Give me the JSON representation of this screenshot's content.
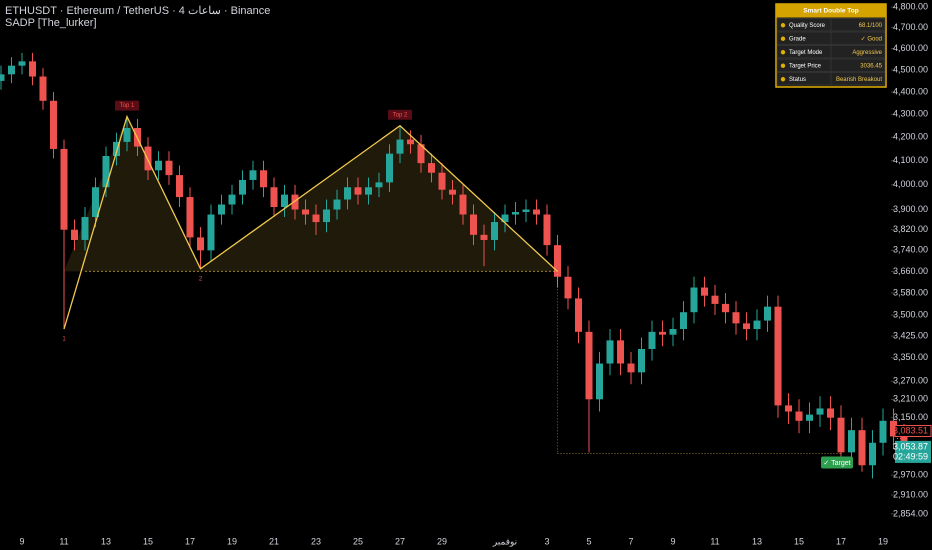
{
  "header": {
    "symbol": "ETHUSDT · Ethereum / TetherUS · 4 ساعات · Binance",
    "indicator": "SADP [The_lurker]"
  },
  "chart_data": {
    "type": "candlestick",
    "log_scale": true,
    "up_color": "#26a69a",
    "down_color": "#ef5350",
    "categories": [
      null,
      null,
      "9",
      null,
      null,
      null,
      "11",
      null,
      null,
      null,
      "13",
      null,
      null,
      null,
      "15",
      null,
      null,
      null,
      "17",
      null,
      null,
      null,
      "19",
      null,
      null,
      null,
      "21",
      null,
      null,
      null,
      "23",
      null,
      null,
      null,
      "25",
      null,
      null,
      null,
      "27",
      null,
      null,
      null,
      "29",
      null,
      null,
      null,
      null,
      null,
      "نوفمبر",
      null,
      null,
      null,
      "3",
      null,
      null,
      null,
      "5",
      null,
      null,
      null,
      "7",
      null,
      null,
      null,
      "9",
      null,
      null,
      null,
      "11",
      null,
      null,
      null,
      "13",
      null,
      null,
      null,
      "15",
      null,
      null,
      null,
      "17",
      null,
      null,
      null,
      "19",
      null,
      null
    ],
    "open": [
      4450,
      4480,
      4520,
      4540,
      4470,
      4360,
      4150,
      3820,
      3780,
      3870,
      3990,
      4120,
      4180,
      4240,
      4160,
      4060,
      4100,
      4040,
      3950,
      3790,
      3740,
      3880,
      3920,
      3960,
      4020,
      4060,
      3990,
      3910,
      3960,
      3900,
      3880,
      3850,
      3900,
      3940,
      3990,
      3960,
      3990,
      4010,
      4130,
      4190,
      4170,
      4090,
      4050,
      3980,
      3960,
      3880,
      3800,
      3780,
      3850,
      3880,
      3890,
      3900,
      3880,
      3760,
      3640,
      3560,
      3440,
      3210,
      3330,
      3410,
      3330,
      3300,
      3380,
      3440,
      3430,
      3450,
      3510,
      3600,
      3570,
      3540,
      3510,
      3470,
      3450,
      3480,
      3530,
      3190,
      3170,
      3140,
      3160,
      3180,
      3150,
      3040,
      3110,
      3000,
      3070,
      3140,
      3090
    ],
    "high": [
      4520,
      4560,
      4580,
      4580,
      4510,
      4400,
      4190,
      3860,
      3910,
      4030,
      4160,
      4220,
      4290,
      4280,
      4200,
      4140,
      4140,
      4080,
      3990,
      3830,
      3920,
      3960,
      4000,
      4060,
      4100,
      4100,
      4030,
      4000,
      4000,
      3940,
      3920,
      3940,
      3980,
      4030,
      4030,
      4030,
      4050,
      4170,
      4250,
      4230,
      4210,
      4130,
      4090,
      4020,
      4000,
      3920,
      3840,
      3890,
      3920,
      3930,
      3940,
      3940,
      3920,
      3800,
      3680,
      3600,
      3480,
      3370,
      3450,
      3450,
      3370,
      3420,
      3480,
      3480,
      3490,
      3550,
      3640,
      3640,
      3610,
      3580,
      3550,
      3510,
      3520,
      3570,
      3570,
      3230,
      3210,
      3200,
      3220,
      3220,
      3190,
      3150,
      3150,
      3110,
      3180,
      3180,
      3130
    ],
    "low": [
      4410,
      4440,
      4480,
      4430,
      4320,
      4110,
      3450,
      3740,
      3740,
      3830,
      3950,
      4080,
      4140,
      4120,
      4020,
      4020,
      4000,
      3910,
      3750,
      3670,
      3700,
      3840,
      3880,
      3920,
      3980,
      3950,
      3870,
      3870,
      3860,
      3840,
      3800,
      3810,
      3860,
      3900,
      3920,
      3920,
      3950,
      3970,
      4090,
      4130,
      4050,
      4010,
      3940,
      3920,
      3840,
      3760,
      3680,
      3740,
      3810,
      3840,
      3850,
      3840,
      3720,
      3600,
      3520,
      3400,
      3040,
      3170,
      3290,
      3290,
      3260,
      3260,
      3340,
      3390,
      3390,
      3410,
      3470,
      3530,
      3500,
      3470,
      3430,
      3410,
      3410,
      3440,
      3150,
      3130,
      3100,
      3100,
      3120,
      3110,
      3000,
      3000,
      2980,
      2960,
      3030,
      3050,
      3020
    ],
    "close": [
      4480,
      4520,
      4540,
      4470,
      4360,
      4150,
      3820,
      3780,
      3870,
      3990,
      4120,
      4180,
      4240,
      4160,
      4060,
      4100,
      4040,
      3950,
      3790,
      3740,
      3880,
      3920,
      3960,
      4020,
      4060,
      3990,
      3910,
      3960,
      3900,
      3880,
      3850,
      3900,
      3940,
      3990,
      3960,
      3990,
      4010,
      4130,
      4190,
      4170,
      4090,
      4050,
      3980,
      3960,
      3880,
      3800,
      3780,
      3850,
      3880,
      3890,
      3900,
      3880,
      3760,
      3640,
      3560,
      3440,
      3210,
      3330,
      3410,
      3330,
      3300,
      3380,
      3440,
      3430,
      3450,
      3510,
      3600,
      3570,
      3540,
      3510,
      3470,
      3450,
      3480,
      3530,
      3190,
      3170,
      3140,
      3160,
      3180,
      3150,
      3040,
      3110,
      3000,
      3070,
      3140,
      3090,
      3054
    ],
    "ylim": [
      2790,
      4835
    ],
    "yticks": [
      {
        "value": 4800,
        "label": "4,800.00"
      },
      {
        "value": 4700,
        "label": "4,700.00"
      },
      {
        "value": 4600,
        "label": "4,600.00"
      },
      {
        "value": 4500,
        "label": "4,500.00"
      },
      {
        "value": 4400,
        "label": "4,400.00"
      },
      {
        "value": 4300,
        "label": "4,300.00"
      },
      {
        "value": 4200,
        "label": "4,200.00"
      },
      {
        "value": 4100,
        "label": "4,100.00"
      },
      {
        "value": 4000,
        "label": "4,000.00"
      },
      {
        "value": 3900,
        "label": "3,900.00"
      },
      {
        "value": 3820,
        "label": "3,820.00"
      },
      {
        "value": 3740,
        "label": "3,740.00"
      },
      {
        "value": 3660,
        "label": "3,660.00"
      },
      {
        "value": 3580,
        "label": "3,580.00"
      },
      {
        "value": 3500,
        "label": "3,500.00"
      },
      {
        "value": 3425,
        "label": "3,425.00"
      },
      {
        "value": 3350,
        "label": "3,350.00"
      },
      {
        "value": 3270,
        "label": "3,270.00"
      },
      {
        "value": 3210,
        "label": "3,210.00"
      },
      {
        "value": 3150,
        "label": "3,150.00"
      },
      {
        "value": 2970,
        "label": "2,970.00"
      },
      {
        "value": 2910,
        "label": "2,910.00"
      },
      {
        "value": 2854,
        "label": "2,854.00"
      }
    ],
    "pattern": {
      "color": "#f2c94c",
      "points": [
        {
          "label": "1",
          "index": 6,
          "price": 3450
        },
        {
          "label": "Top 1",
          "index": 12,
          "price": 4290
        },
        {
          "label": "2",
          "index": 19,
          "price": 3670
        },
        {
          "label": "Top 2",
          "index": 38,
          "price": 4250
        },
        {
          "index": 53,
          "price": 3660
        }
      ],
      "neckline": 3660,
      "neckline_start": 8,
      "target_label": "✓ Target",
      "target_end": 80
    },
    "price_marks": [
      {
        "value": 3083.51,
        "label": "3,083.51",
        "color": "#ef5350"
      },
      {
        "value": 3053.87,
        "label": "3,053.87",
        "color": "#26a69a",
        "countdown": "02:49:59"
      }
    ]
  },
  "table": {
    "title": "Smart Double Top",
    "rows": [
      [
        "Quality Score",
        "68.1/100"
      ],
      [
        "Grade",
        "✓ Good"
      ],
      [
        "Target Mode",
        "Aggressive"
      ],
      [
        "Target Price",
        "3036.45"
      ],
      [
        "Status",
        "Bearish Breakout"
      ]
    ]
  }
}
